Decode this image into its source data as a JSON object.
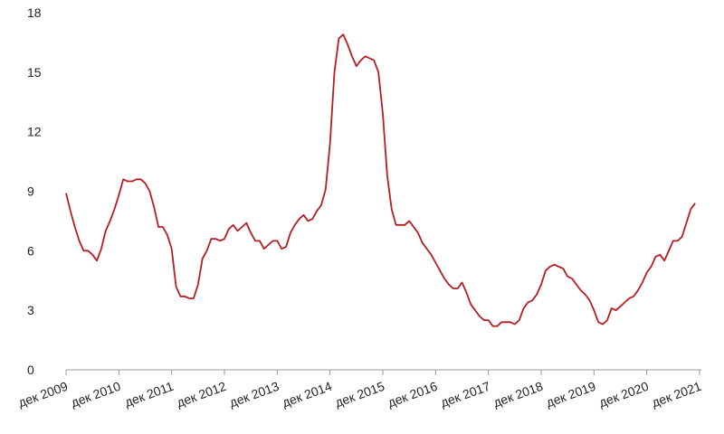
{
  "chart_data": {
    "type": "line",
    "color": "#b81c22",
    "x": [
      0,
      1,
      2,
      3,
      4,
      5,
      6,
      7,
      8,
      9,
      10,
      11,
      12,
      13,
      14,
      15,
      16,
      17,
      18,
      19,
      20,
      21,
      22,
      23,
      24,
      25,
      26,
      27,
      28,
      29,
      30,
      31,
      32,
      33,
      34,
      35,
      36,
      37,
      38,
      39,
      40,
      41,
      42,
      43,
      44,
      45,
      46,
      47,
      48,
      49,
      50,
      51,
      52,
      53,
      54,
      55,
      56,
      57,
      58,
      59,
      60,
      61,
      62,
      63,
      64,
      65,
      66,
      67,
      68,
      69,
      70,
      71,
      72,
      73,
      74,
      75,
      76,
      77,
      78,
      79,
      80,
      81,
      82,
      83,
      84,
      85,
      86,
      87,
      88,
      89,
      90,
      91,
      92,
      93,
      94,
      95,
      96,
      97,
      98,
      99,
      100,
      101,
      102,
      103,
      104,
      105,
      106,
      107,
      108,
      109,
      110,
      111,
      112,
      113,
      114,
      115,
      116,
      117,
      118,
      119,
      120,
      121,
      122,
      123,
      124,
      125,
      126,
      127,
      128,
      129,
      130,
      131,
      132,
      133,
      134,
      135,
      136,
      137,
      138,
      139,
      140,
      141,
      142,
      143
    ],
    "values": [
      8.9,
      8.0,
      7.2,
      6.5,
      6.0,
      6.0,
      5.8,
      5.5,
      6.1,
      7.0,
      7.5,
      8.1,
      8.8,
      9.6,
      9.5,
      9.5,
      9.6,
      9.6,
      9.4,
      9.0,
      8.2,
      7.2,
      7.2,
      6.8,
      6.1,
      4.2,
      3.7,
      3.7,
      3.6,
      3.6,
      4.3,
      5.6,
      6.0,
      6.6,
      6.6,
      6.5,
      6.6,
      7.1,
      7.3,
      7.0,
      7.2,
      7.4,
      6.9,
      6.5,
      6.5,
      6.1,
      6.3,
      6.5,
      6.5,
      6.1,
      6.2,
      6.9,
      7.3,
      7.6,
      7.8,
      7.5,
      7.6,
      8.0,
      8.3,
      9.1,
      11.4,
      15.0,
      16.7,
      16.9,
      16.4,
      15.8,
      15.3,
      15.6,
      15.8,
      15.7,
      15.6,
      15.0,
      12.9,
      9.8,
      8.1,
      7.3,
      7.3,
      7.3,
      7.5,
      7.2,
      6.9,
      6.4,
      6.1,
      5.8,
      5.4,
      5.0,
      4.6,
      4.3,
      4.1,
      4.1,
      4.4,
      3.9,
      3.3,
      3.0,
      2.7,
      2.5,
      2.5,
      2.2,
      2.2,
      2.4,
      2.4,
      2.4,
      2.3,
      2.5,
      3.1,
      3.4,
      3.5,
      3.8,
      4.3,
      5.0,
      5.2,
      5.3,
      5.2,
      5.1,
      4.7,
      4.6,
      4.3,
      4.0,
      3.8,
      3.5,
      3.0,
      2.4,
      2.3,
      2.5,
      3.1,
      3.0,
      3.2,
      3.4,
      3.6,
      3.7,
      4.0,
      4.4,
      4.9,
      5.2,
      5.7,
      5.8,
      5.5,
      6.0,
      6.5,
      6.5,
      6.7,
      7.4,
      8.1,
      8.4
    ],
    "xlim": [
      0,
      144
    ],
    "xticks": [
      {
        "value": 0,
        "label": "дек 2009"
      },
      {
        "value": 12,
        "label": "дек 2010"
      },
      {
        "value": 24,
        "label": "дек 2011"
      },
      {
        "value": 36,
        "label": "дек 2012"
      },
      {
        "value": 48,
        "label": "дек 2013"
      },
      {
        "value": 60,
        "label": "дек 2014"
      },
      {
        "value": 72,
        "label": "дек 2015"
      },
      {
        "value": 84,
        "label": "дек 2016"
      },
      {
        "value": 96,
        "label": "дек 2017"
      },
      {
        "value": 108,
        "label": "дек 2018"
      },
      {
        "value": 120,
        "label": "дек 2019"
      },
      {
        "value": 132,
        "label": "дек 2020"
      },
      {
        "value": 144,
        "label": "дек 2021"
      }
    ],
    "ylim": [
      0,
      18
    ],
    "yticks": [
      0,
      3,
      6,
      9,
      12,
      15,
      18
    ],
    "grid": false
  }
}
